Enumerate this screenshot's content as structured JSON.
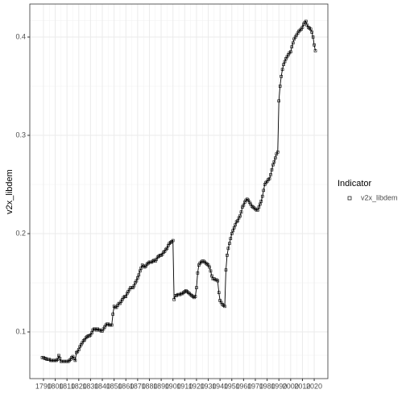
{
  "chart_data": {
    "type": "line",
    "y_label": "v2x_libdem",
    "legend_title": "Indicator",
    "x": [
      1789,
      1790,
      1791,
      1792,
      1793,
      1794,
      1795,
      1796,
      1797,
      1798,
      1799,
      1800,
      1801,
      1802,
      1803,
      1804,
      1805,
      1806,
      1807,
      1808,
      1809,
      1810,
      1811,
      1812,
      1813,
      1814,
      1815,
      1816,
      1817,
      1818,
      1819,
      1820,
      1821,
      1822,
      1823,
      1824,
      1825,
      1826,
      1827,
      1828,
      1829,
      1830,
      1831,
      1832,
      1833,
      1834,
      1835,
      1836,
      1837,
      1838,
      1839,
      1840,
      1841,
      1842,
      1843,
      1844,
      1845,
      1846,
      1847,
      1848,
      1849,
      1850,
      1851,
      1852,
      1853,
      1854,
      1855,
      1856,
      1857,
      1858,
      1859,
      1860,
      1861,
      1862,
      1863,
      1864,
      1865,
      1866,
      1867,
      1868,
      1869,
      1870,
      1871,
      1872,
      1873,
      1874,
      1875,
      1876,
      1877,
      1878,
      1879,
      1880,
      1881,
      1882,
      1883,
      1884,
      1885,
      1886,
      1887,
      1888,
      1889,
      1890,
      1891,
      1892,
      1893,
      1894,
      1895,
      1896,
      1897,
      1898,
      1899,
      1900,
      1901,
      1902,
      1903,
      1904,
      1905,
      1906,
      1907,
      1908,
      1909,
      1910,
      1911,
      1912,
      1913,
      1914,
      1915,
      1916,
      1917,
      1918,
      1919,
      1920,
      1921,
      1922,
      1923,
      1924,
      1925,
      1926,
      1927,
      1928,
      1929,
      1930,
      1931,
      1932,
      1933,
      1934,
      1935,
      1936,
      1937,
      1938,
      1939,
      1940,
      1941,
      1942,
      1943,
      1944,
      1945,
      1946,
      1947,
      1948,
      1949,
      1950,
      1951,
      1952,
      1953,
      1954,
      1955,
      1956,
      1957,
      1958,
      1959,
      1960,
      1961,
      1962,
      1963,
      1964,
      1965,
      1966,
      1967,
      1968,
      1969,
      1970,
      1971,
      1972,
      1973,
      1974,
      1975,
      1976,
      1977,
      1978,
      1979,
      1980,
      1981,
      1982,
      1983,
      1984,
      1985,
      1986,
      1987,
      1988,
      1989,
      1990,
      1991,
      1992,
      1993,
      1994,
      1995,
      1996,
      1997,
      1998,
      1999,
      2000,
      2001,
      2002,
      2003,
      2004,
      2005,
      2006,
      2007,
      2008,
      2009,
      2010,
      2011,
      2012,
      2013,
      2014,
      2015,
      2016,
      2017,
      2018,
      2019,
      2020,
      2021
    ],
    "series": [
      {
        "name": "v2x_libdem",
        "color": "#000000",
        "values": [
          0.074,
          0.074,
          0.073,
          0.073,
          0.072,
          0.072,
          0.072,
          0.071,
          0.071,
          0.071,
          0.071,
          0.071,
          0.071,
          0.072,
          0.076,
          0.073,
          0.07,
          0.07,
          0.07,
          0.07,
          0.07,
          0.07,
          0.07,
          0.071,
          0.072,
          0.074,
          0.075,
          0.073,
          0.071,
          0.079,
          0.08,
          0.082,
          0.085,
          0.087,
          0.089,
          0.091,
          0.092,
          0.094,
          0.095,
          0.096,
          0.096,
          0.097,
          0.099,
          0.102,
          0.103,
          0.103,
          0.102,
          0.103,
          0.102,
          0.102,
          0.101,
          0.101,
          0.103,
          0.105,
          0.107,
          0.108,
          0.108,
          0.107,
          0.107,
          0.107,
          0.118,
          0.126,
          0.125,
          0.125,
          0.127,
          0.129,
          0.129,
          0.131,
          0.133,
          0.135,
          0.136,
          0.136,
          0.139,
          0.141,
          0.143,
          0.145,
          0.145,
          0.145,
          0.147,
          0.15,
          0.152,
          0.155,
          0.158,
          0.162,
          0.165,
          0.168,
          0.167,
          0.166,
          0.167,
          0.169,
          0.17,
          0.171,
          0.171,
          0.171,
          0.172,
          0.173,
          0.172,
          0.174,
          0.176,
          0.177,
          0.178,
          0.178,
          0.179,
          0.181,
          0.182,
          0.184,
          0.185,
          0.188,
          0.19,
          0.191,
          0.192,
          0.193,
          0.133,
          0.137,
          0.137,
          0.138,
          0.138,
          0.138,
          0.139,
          0.139,
          0.14,
          0.141,
          0.142,
          0.141,
          0.14,
          0.139,
          0.138,
          0.137,
          0.136,
          0.135,
          0.136,
          0.145,
          0.16,
          0.168,
          0.17,
          0.171,
          0.172,
          0.172,
          0.171,
          0.17,
          0.169,
          0.168,
          0.166,
          0.162,
          0.157,
          0.154,
          0.154,
          0.153,
          0.153,
          0.152,
          0.14,
          0.132,
          0.13,
          0.128,
          0.127,
          0.126,
          0.163,
          0.178,
          0.185,
          0.19,
          0.195,
          0.2,
          0.203,
          0.206,
          0.209,
          0.212,
          0.213,
          0.216,
          0.218,
          0.222,
          0.227,
          0.229,
          0.232,
          0.234,
          0.235,
          0.234,
          0.232,
          0.23,
          0.228,
          0.227,
          0.226,
          0.225,
          0.224,
          0.224,
          0.227,
          0.23,
          0.233,
          0.238,
          0.244,
          0.25,
          0.252,
          0.253,
          0.255,
          0.256,
          0.26,
          0.265,
          0.27,
          0.273,
          0.277,
          0.281,
          0.283,
          0.335,
          0.35,
          0.36,
          0.367,
          0.372,
          0.375,
          0.378,
          0.38,
          0.382,
          0.384,
          0.385,
          0.39,
          0.394,
          0.398,
          0.4,
          0.402,
          0.404,
          0.406,
          0.407,
          0.408,
          0.41,
          0.413,
          0.415,
          0.416,
          0.412,
          0.41,
          0.409,
          0.408,
          0.405,
          0.4,
          0.392,
          0.386
        ]
      }
    ],
    "xlim": [
      1778.4,
      2031.6
    ],
    "xticks": [
      1790,
      1800,
      1810,
      1820,
      1830,
      1840,
      1850,
      1860,
      1870,
      1880,
      1890,
      1900,
      1910,
      1920,
      1930,
      1940,
      1950,
      1960,
      1970,
      1980,
      1990,
      2000,
      2010,
      2020
    ],
    "ylim": [
      0.0525,
      0.4336
    ],
    "yticks": [
      0.1,
      0.2,
      0.3,
      0.4
    ],
    "grid": true,
    "legend": "right"
  }
}
